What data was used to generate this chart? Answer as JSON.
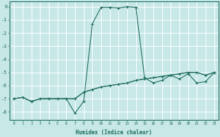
{
  "xlabel": "Humidex (Indice chaleur)",
  "background_color": "#c8e8e8",
  "grid_color": "#ffffff",
  "line_color": "#1a6b5a",
  "xlim": [
    -0.5,
    23.5
  ],
  "ylim": [
    -8.6,
    0.4
  ],
  "xticks": [
    0,
    1,
    2,
    3,
    4,
    5,
    6,
    7,
    8,
    9,
    10,
    11,
    12,
    13,
    14,
    15,
    16,
    17,
    18,
    19,
    20,
    21,
    22,
    23
  ],
  "yticks": [
    0,
    -1,
    -2,
    -3,
    -4,
    -5,
    -6,
    -7,
    -8
  ],
  "peak_x": [
    0,
    1,
    2,
    3,
    4,
    5,
    6,
    7,
    8,
    9,
    10,
    11,
    12,
    13,
    14,
    15,
    16,
    17,
    18,
    19,
    20,
    21,
    22,
    23
  ],
  "peak_y": [
    -7.0,
    -6.9,
    -7.2,
    -7.0,
    -7.0,
    -7.0,
    -7.0,
    -8.1,
    -7.2,
    -1.3,
    -0.05,
    -0.05,
    -0.1,
    0.0,
    -0.05,
    -5.4,
    -5.8,
    -5.6,
    -5.2,
    -5.5,
    -5.1,
    -5.8,
    -5.7,
    -5.0
  ],
  "base_x": [
    0,
    1,
    2,
    3,
    4,
    5,
    6,
    7,
    8,
    9,
    10,
    11,
    12,
    13,
    14,
    15,
    16,
    17,
    18,
    19,
    20,
    21,
    22,
    23
  ],
  "base_y": [
    -7.0,
    -6.9,
    -7.2,
    -7.0,
    -7.0,
    -7.0,
    -7.0,
    -7.0,
    -6.5,
    -6.3,
    -6.1,
    -6.0,
    -5.9,
    -5.8,
    -5.6,
    -5.5,
    -5.4,
    -5.3,
    -5.2,
    -5.1,
    -5.0,
    -5.0,
    -5.2,
    -5.0
  ],
  "base2_x": [
    0,
    1,
    2,
    3,
    4,
    5,
    6,
    7,
    8,
    9,
    10,
    11,
    12,
    13,
    14,
    15,
    16,
    17,
    18,
    19,
    20,
    21,
    22,
    23
  ],
  "base2_y": [
    -7.0,
    -6.9,
    -7.2,
    -7.0,
    -7.0,
    -7.0,
    -7.0,
    -7.0,
    -6.5,
    -6.3,
    -6.1,
    -6.0,
    -5.9,
    -5.8,
    -5.6,
    -5.5,
    -5.4,
    -5.3,
    -5.2,
    -5.1,
    -5.0,
    -5.0,
    -5.2,
    -5.0
  ]
}
